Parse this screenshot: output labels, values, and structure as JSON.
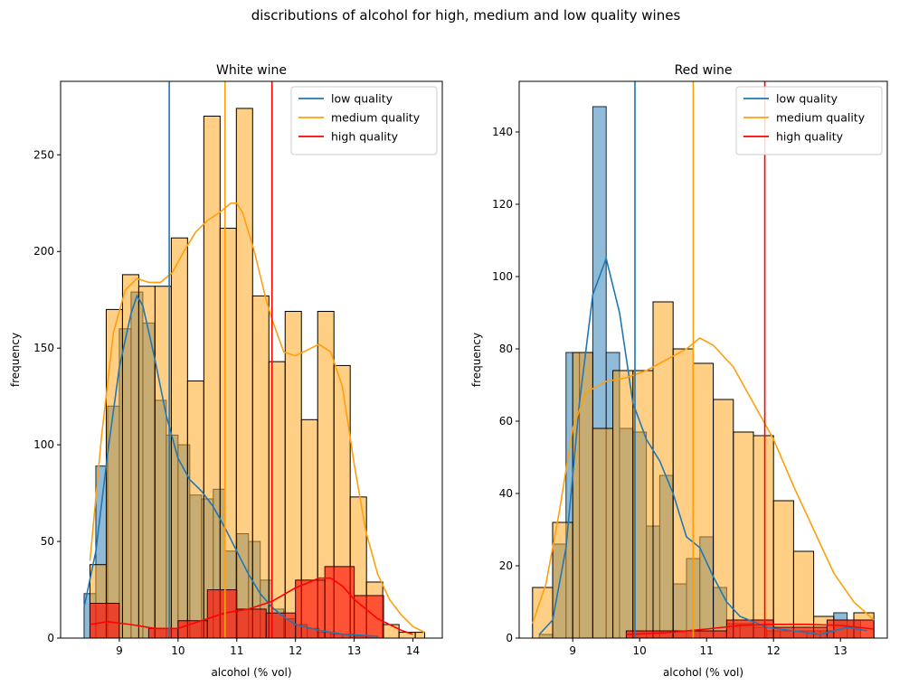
{
  "figure": {
    "suptitle": "discributions of alcohol for high, medium and low quality wines"
  },
  "chart_data": [
    {
      "type": "bar",
      "title": "White wine",
      "xlabel": "alcohol (% vol)",
      "ylabel": "frequency",
      "xlim": [
        8.0,
        14.5
      ],
      "ylim": [
        0,
        288
      ],
      "xticks": [
        9,
        10,
        11,
        12,
        13,
        14
      ],
      "yticks": [
        0,
        50,
        100,
        150,
        200,
        250
      ],
      "legend": {
        "placement": "top-right",
        "entries": [
          "low quality",
          "medium quality",
          "high quality"
        ]
      },
      "series": [
        {
          "name": "low quality",
          "color": "#1f77b4",
          "edges": [
            8.4,
            8.6,
            8.8,
            9.0,
            9.2,
            9.4,
            9.6,
            9.8,
            10.0,
            10.2,
            10.4,
            10.6,
            10.8,
            11.0,
            11.2,
            11.4,
            11.6,
            11.8,
            12.0,
            12.2,
            12.4,
            12.6,
            12.8,
            13.0,
            13.2,
            13.4
          ],
          "counts": [
            23,
            89,
            120,
            160,
            179,
            163,
            123,
            105,
            100,
            74,
            72,
            77,
            45,
            54,
            50,
            30,
            15,
            10,
            7,
            5,
            3,
            2,
            2,
            1,
            1
          ],
          "mean": 9.85,
          "kde": [
            [
              8.4,
              16
            ],
            [
              8.6,
              45
            ],
            [
              8.8,
              95
            ],
            [
              9.0,
              140
            ],
            [
              9.2,
              168
            ],
            [
              9.3,
              177
            ],
            [
              9.4,
              172
            ],
            [
              9.6,
              145
            ],
            [
              9.8,
              115
            ],
            [
              10.0,
              93
            ],
            [
              10.2,
              82
            ],
            [
              10.4,
              76
            ],
            [
              10.6,
              68
            ],
            [
              10.8,
              57
            ],
            [
              11.0,
              45
            ],
            [
              11.2,
              33
            ],
            [
              11.4,
              23
            ],
            [
              11.6,
              16
            ],
            [
              11.8,
              11
            ],
            [
              12.0,
              7
            ],
            [
              12.4,
              4
            ],
            [
              12.8,
              2
            ],
            [
              13.4,
              1
            ]
          ]
        },
        {
          "name": "medium quality",
          "color": "#ff9f0e",
          "edges": [
            8.5,
            8.777,
            9.054,
            9.331,
            9.608,
            9.885,
            10.162,
            10.439,
            10.716,
            10.993,
            11.27,
            11.547,
            11.824,
            12.101,
            12.378,
            12.655,
            12.932,
            13.209,
            13.486,
            13.763,
            14.04,
            14.2
          ],
          "counts": [
            38,
            170,
            188,
            182,
            182,
            207,
            133,
            270,
            212,
            274,
            177,
            143,
            169,
            113,
            169,
            141,
            73,
            29,
            7,
            3,
            3
          ],
          "mean": 10.8,
          "kde": [
            [
              8.5,
              40
            ],
            [
              8.7,
              105
            ],
            [
              8.9,
              158
            ],
            [
              9.1,
              180
            ],
            [
              9.3,
              186
            ],
            [
              9.5,
              184
            ],
            [
              9.7,
              184
            ],
            [
              9.9,
              189
            ],
            [
              10.1,
              200
            ],
            [
              10.3,
              210
            ],
            [
              10.5,
              216
            ],
            [
              10.7,
              220
            ],
            [
              10.9,
              225
            ],
            [
              11.0,
              225
            ],
            [
              11.1,
              220
            ],
            [
              11.3,
              200
            ],
            [
              11.5,
              175
            ],
            [
              11.6,
              165
            ],
            [
              11.8,
              148
            ],
            [
              12.0,
              146
            ],
            [
              12.2,
              149
            ],
            [
              12.4,
              152
            ],
            [
              12.6,
              148
            ],
            [
              12.8,
              130
            ],
            [
              13.0,
              90
            ],
            [
              13.2,
              55
            ],
            [
              13.4,
              33
            ],
            [
              13.6,
              20
            ],
            [
              13.8,
              12
            ],
            [
              14.0,
              6
            ],
            [
              14.2,
              3
            ]
          ]
        },
        {
          "name": "high quality",
          "color": "#ff0000",
          "edges": [
            8.5,
            9.0,
            9.5,
            10.0,
            10.5,
            11.0,
            11.5,
            12.0,
            12.5,
            13.0,
            13.5
          ],
          "counts": [
            18,
            0,
            5,
            9,
            25,
            15,
            13,
            30,
            37,
            22,
            5
          ],
          "mean": 11.6,
          "kde": [
            [
              8.5,
              7
            ],
            [
              8.8,
              8.5
            ],
            [
              9.2,
              7
            ],
            [
              9.6,
              5
            ],
            [
              10.0,
              5
            ],
            [
              10.4,
              9
            ],
            [
              10.8,
              13
            ],
            [
              11.2,
              15
            ],
            [
              11.6,
              19
            ],
            [
              12.0,
              26
            ],
            [
              12.4,
              31
            ],
            [
              12.6,
              31
            ],
            [
              12.8,
              27
            ],
            [
              13.0,
              20
            ],
            [
              13.4,
              10
            ],
            [
              13.8,
              4
            ],
            [
              14.0,
              2
            ]
          ]
        }
      ]
    },
    {
      "type": "bar",
      "title": "Red wine",
      "xlabel": "alcohol (% vol)",
      "ylabel": "frequency",
      "xlim": [
        8.2,
        13.7
      ],
      "ylim": [
        0,
        154
      ],
      "xticks": [
        9,
        10,
        11,
        12,
        13
      ],
      "yticks": [
        0,
        20,
        40,
        60,
        80,
        100,
        120,
        140
      ],
      "legend": {
        "placement": "top-right",
        "entries": [
          "low quality",
          "medium quality",
          "high quality"
        ]
      },
      "series": [
        {
          "name": "low quality",
          "color": "#1f77b4",
          "edges": [
            8.5,
            8.7,
            8.9,
            9.1,
            9.3,
            9.5,
            9.7,
            9.9,
            10.1,
            10.3,
            10.5,
            10.7,
            10.9,
            11.1,
            11.3,
            11.5,
            11.7,
            11.9,
            12.1,
            12.3,
            12.5,
            12.7,
            12.9,
            13.1,
            13.3
          ],
          "counts": [
            1,
            26,
            79,
            79,
            147,
            79,
            58,
            57,
            31,
            45,
            15,
            22,
            28,
            14,
            4,
            4,
            3,
            2,
            2,
            2,
            2,
            2,
            7,
            5
          ],
          "mean": 9.93,
          "kde": [
            [
              8.5,
              1
            ],
            [
              8.7,
              5
            ],
            [
              8.9,
              25
            ],
            [
              9.1,
              65
            ],
            [
              9.3,
              95
            ],
            [
              9.5,
              105
            ],
            [
              9.7,
              90
            ],
            [
              9.9,
              65
            ],
            [
              10.1,
              55
            ],
            [
              10.3,
              49
            ],
            [
              10.5,
              40
            ],
            [
              10.7,
              28
            ],
            [
              10.9,
              25
            ],
            [
              11.1,
              17
            ],
            [
              11.3,
              10
            ],
            [
              11.5,
              6
            ],
            [
              11.9,
              3
            ],
            [
              12.3,
              2
            ],
            [
              12.7,
              1
            ],
            [
              13.1,
              3
            ],
            [
              13.4,
              2
            ]
          ]
        },
        {
          "name": "medium quality",
          "color": "#ff9f0e",
          "edges": [
            8.4,
            8.7,
            9.0,
            9.3,
            9.6,
            9.9,
            10.2,
            10.5,
            10.8,
            11.1,
            11.4,
            11.7,
            12.0,
            12.3,
            12.6,
            12.9,
            13.2,
            13.5
          ],
          "counts": [
            14,
            32,
            79,
            58,
            74,
            74,
            93,
            80,
            76,
            66,
            57,
            56,
            38,
            24,
            6,
            5,
            7
          ],
          "mean": 10.8,
          "kde": [
            [
              8.4,
              4
            ],
            [
              8.6,
              15
            ],
            [
              8.8,
              35
            ],
            [
              9.0,
              58
            ],
            [
              9.2,
              68
            ],
            [
              9.5,
              71
            ],
            [
              9.8,
              72
            ],
            [
              10.1,
              74
            ],
            [
              10.4,
              77
            ],
            [
              10.7,
              80
            ],
            [
              10.9,
              83
            ],
            [
              11.1,
              81
            ],
            [
              11.4,
              75
            ],
            [
              11.7,
              65
            ],
            [
              12.0,
              55
            ],
            [
              12.3,
              42
            ],
            [
              12.6,
              30
            ],
            [
              12.9,
              18
            ],
            [
              13.2,
              10
            ],
            [
              13.5,
              5
            ]
          ]
        },
        {
          "name": "high quality",
          "color": "#ff0000",
          "edges": [
            9.8,
            10.5,
            11.3,
            12.0,
            12.8,
            13.5
          ],
          "counts": [
            2,
            2,
            5,
            3,
            5
          ],
          "mean": 11.87,
          "kde": [
            [
              9.8,
              1
            ],
            [
              10.4,
              1.5
            ],
            [
              11.0,
              2.5
            ],
            [
              11.5,
              3.5
            ],
            [
              12.0,
              3.8
            ],
            [
              12.5,
              3.8
            ],
            [
              13.0,
              3.5
            ],
            [
              13.5,
              2.5
            ]
          ]
        }
      ]
    }
  ]
}
